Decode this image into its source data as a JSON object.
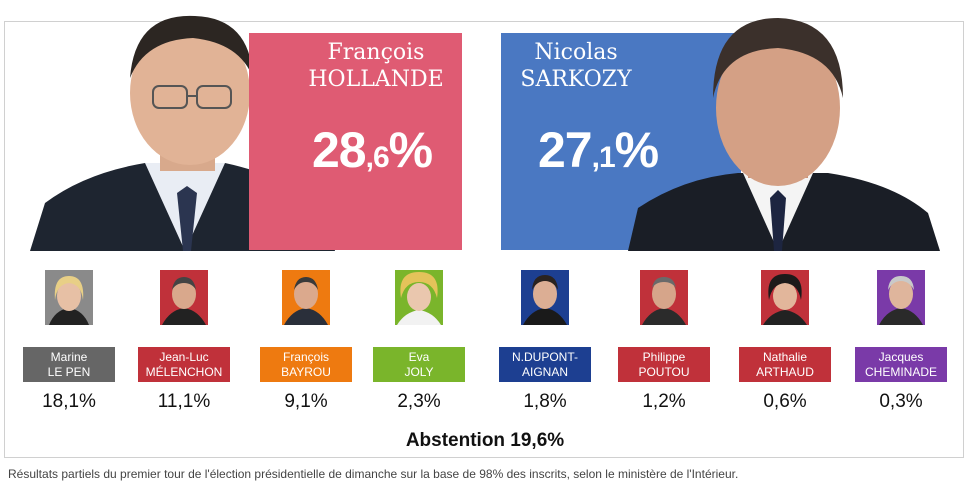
{
  "leaders": [
    {
      "first": "François",
      "last": "HOLLANDE",
      "pct_int": "28",
      "pct_dec": ",6",
      "pct_sign": "%",
      "color": "#df5b73"
    },
    {
      "first": "Nicolas",
      "last": "SARKOZY",
      "pct_int": "27",
      "pct_dec": ",1",
      "pct_sign": "%",
      "color": "#4a78c2"
    }
  ],
  "candidates": [
    {
      "line1": "Marine",
      "line2": "LE PEN",
      "pct": "18,1%",
      "color": "#666666"
    },
    {
      "line1": "Jean-Luc",
      "line2": "MÉLENCHON",
      "pct": "11,1%",
      "color": "#c0313a"
    },
    {
      "line1": "François",
      "line2": "BAYROU",
      "pct": "9,1%",
      "color": "#ee7a10"
    },
    {
      "line1": "Eva",
      "line2": "JOLY",
      "pct": "2,3%",
      "color": "#7ab52b"
    },
    {
      "line1": "N.DUPONT-",
      "line2": "AIGNAN",
      "pct": "1,8%",
      "color": "#1d3f91"
    },
    {
      "line1": "Philippe",
      "line2": "POUTOU",
      "pct": "1,2%",
      "color": "#c0313a"
    },
    {
      "line1": "Nathalie",
      "line2": "ARTHAUD",
      "pct": "0,6%",
      "color": "#c0313a"
    },
    {
      "line1": "Jacques",
      "line2": "CHEMINADE",
      "pct": "0,3%",
      "color": "#7a3aa8"
    }
  ],
  "abstention": "Abstention 19,6%",
  "caption": "Résultats partiels du premier tour de l'élection présidentielle de dimanche sur la base de 98% des inscrits, selon le ministère de l'Intérieur."
}
